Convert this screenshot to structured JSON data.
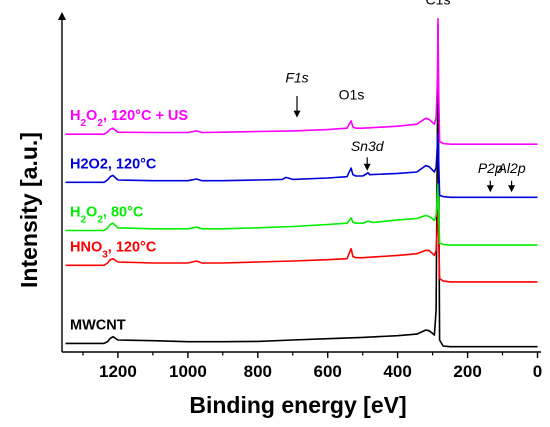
{
  "chart_data": {
    "type": "line",
    "xlabel": "Binding energy [eV]",
    "ylabel": "Intensity [a.u.]",
    "x_reversed": true,
    "xlim": [
      1360,
      -10
    ],
    "x_ticks": [
      1200,
      1000,
      800,
      600,
      400,
      200,
      0
    ],
    "y_ticks_shown": false,
    "series": [
      {
        "name": "MWCNT",
        "label_parts": [
          {
            "t": "MWCNT"
          }
        ],
        "color": "#000000",
        "x": [
          1350,
          1240,
          1230,
          1222,
          1214,
          1200,
          1100,
          1000,
          900,
          800,
          700,
          600,
          500,
          400,
          345,
          320,
          310,
          300,
          295,
          290,
          286,
          284.5,
          283,
          280,
          270,
          250,
          200,
          100,
          0
        ],
        "y": [
          0.02,
          0.02,
          0.025,
          0.035,
          0.04,
          0.03,
          0.028,
          0.025,
          0.025,
          0.026,
          0.03,
          0.034,
          0.038,
          0.043,
          0.048,
          0.06,
          0.058,
          0.05,
          0.045,
          0.12,
          0.7,
          0.98,
          0.6,
          0.03,
          0.012,
          0.01,
          0.01,
          0.01,
          0.01
        ]
      },
      {
        "name": "HNO3, 120°C",
        "label_parts": [
          {
            "t": "HNO"
          },
          {
            "t": "3",
            "sub": true
          },
          {
            "t": ", 120°C"
          }
        ],
        "color": "#ff0000",
        "x": [
          1350,
          1240,
          1230,
          1222,
          1214,
          1200,
          1100,
          1000,
          975,
          960,
          900,
          800,
          700,
          600,
          545,
          533,
          528,
          520,
          500,
          400,
          345,
          320,
          310,
          300,
          295,
          290,
          286,
          284.5,
          283,
          280,
          270,
          250,
          200,
          100,
          0
        ],
        "y": [
          0.255,
          0.255,
          0.262,
          0.272,
          0.275,
          0.265,
          0.262,
          0.262,
          0.268,
          0.262,
          0.262,
          0.265,
          0.268,
          0.272,
          0.275,
          0.305,
          0.282,
          0.278,
          0.278,
          0.285,
          0.29,
          0.3,
          0.3,
          0.29,
          0.285,
          0.3,
          0.38,
          0.42,
          0.36,
          0.215,
          0.208,
          0.205,
          0.205,
          0.205,
          0.205
        ]
      },
      {
        "name": "H2O2, 80°C",
        "label_parts": [
          {
            "t": "H"
          },
          {
            "t": "2",
            "sub": true
          },
          {
            "t": "O"
          },
          {
            "t": "2",
            "sub": true
          },
          {
            "t": ", 80°C"
          }
        ],
        "color": "#00ee00",
        "x": [
          1350,
          1240,
          1230,
          1222,
          1214,
          1200,
          1100,
          1000,
          975,
          960,
          900,
          800,
          700,
          600,
          545,
          533,
          528,
          520,
          500,
          485,
          470,
          400,
          345,
          320,
          310,
          300,
          295,
          290,
          286,
          284.5,
          283,
          280,
          270,
          250,
          200,
          100,
          0
        ],
        "y": [
          0.36,
          0.36,
          0.367,
          0.378,
          0.382,
          0.368,
          0.365,
          0.365,
          0.37,
          0.365,
          0.365,
          0.368,
          0.372,
          0.378,
          0.382,
          0.398,
          0.385,
          0.382,
          0.382,
          0.388,
          0.384,
          0.392,
          0.396,
          0.405,
          0.402,
          0.395,
          0.39,
          0.405,
          0.47,
          0.5,
          0.43,
          0.322,
          0.318,
          0.316,
          0.316,
          0.316,
          0.316
        ]
      },
      {
        "name": "H2O2, 120°C",
        "label_parts": [
          {
            "t": "H2O2, 120°C"
          }
        ],
        "color": "#0000dd",
        "x": [
          1350,
          1240,
          1230,
          1222,
          1214,
          1200,
          1100,
          1000,
          975,
          960,
          900,
          800,
          730,
          720,
          700,
          600,
          545,
          533,
          528,
          520,
          500,
          490,
          485,
          480,
          400,
          345,
          320,
          310,
          300,
          295,
          290,
          286,
          284.5,
          283,
          280,
          270,
          250,
          200,
          100,
          0
        ],
        "y": [
          0.505,
          0.505,
          0.512,
          0.522,
          0.526,
          0.512,
          0.51,
          0.51,
          0.515,
          0.51,
          0.51,
          0.512,
          0.514,
          0.52,
          0.514,
          0.518,
          0.522,
          0.548,
          0.528,
          0.524,
          0.524,
          0.53,
          0.534,
          0.528,
          0.532,
          0.536,
          0.555,
          0.552,
          0.542,
          0.536,
          0.55,
          0.62,
          0.65,
          0.58,
          0.466,
          0.462,
          0.46,
          0.46,
          0.46,
          0.46
        ]
      },
      {
        "name": "H2O2, 120°C + US",
        "label_parts": [
          {
            "t": "H"
          },
          {
            "t": "2",
            "sub": true
          },
          {
            "t": "O"
          },
          {
            "t": "2",
            "sub": true
          },
          {
            "t": ", 120°C + US"
          }
        ],
        "color": "#ff00ff",
        "x": [
          1350,
          1240,
          1230,
          1222,
          1214,
          1200,
          1100,
          1000,
          975,
          960,
          900,
          800,
          700,
          600,
          545,
          533,
          528,
          520,
          500,
          400,
          345,
          320,
          310,
          300,
          295,
          290,
          286,
          284.5,
          283,
          280,
          270,
          250,
          200,
          100,
          0
        ],
        "y": [
          0.65,
          0.65,
          0.656,
          0.665,
          0.668,
          0.656,
          0.655,
          0.655,
          0.66,
          0.655,
          0.656,
          0.658,
          0.66,
          0.664,
          0.668,
          0.69,
          0.672,
          0.668,
          0.668,
          0.674,
          0.68,
          0.698,
          0.695,
          0.685,
          0.68,
          0.7,
          0.82,
          0.998,
          0.8,
          0.628,
          0.622,
          0.62,
          0.62,
          0.62,
          0.62
        ]
      }
    ],
    "annotations": [
      {
        "text": "C1s",
        "x": 284.5,
        "y": 1.04,
        "italic": false,
        "arrow": false
      },
      {
        "text": "O1s",
        "x": 532,
        "y": 0.755,
        "italic": false,
        "arrow": false
      },
      {
        "text": "F1s",
        "x": 688,
        "y": 0.805,
        "italic": true,
        "arrow": true,
        "arrow_from": 0.765,
        "arrow_to": 0.7
      },
      {
        "text": "Sn3d",
        "x": 487,
        "y": 0.6,
        "italic": true,
        "arrow": true,
        "arrow_from": 0.58,
        "arrow_to": 0.54
      },
      {
        "text": "P2p",
        "x": 135,
        "y": 0.533,
        "italic": true,
        "arrow": true,
        "arrow_from": 0.51,
        "arrow_to": 0.475
      },
      {
        "text": "Al2p",
        "x": 74,
        "y": 0.533,
        "italic": true,
        "arrow": true,
        "arrow_from": 0.51,
        "arrow_to": 0.475
      }
    ]
  }
}
